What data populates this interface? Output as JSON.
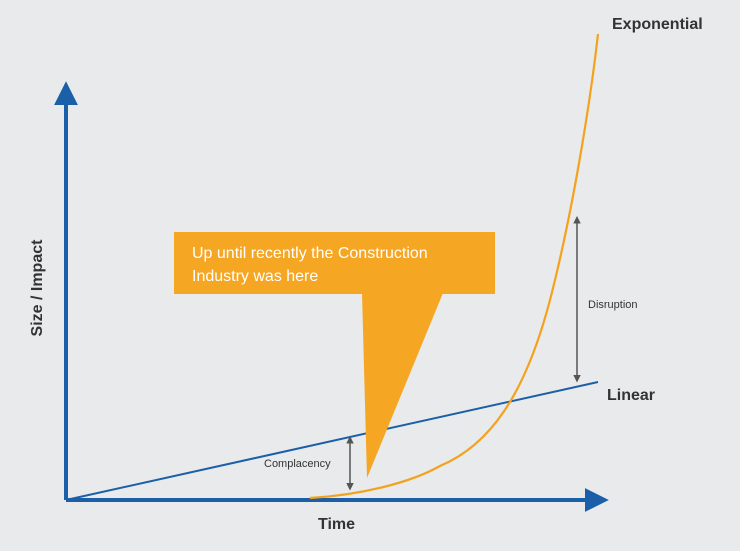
{
  "diagram": {
    "axes": {
      "x_label": "Time",
      "y_label": "Size / Impact"
    },
    "curves": {
      "exponential_label": "Exponential",
      "linear_label": "Linear"
    },
    "annotations": {
      "disruption_label": "Disruption",
      "complacency_label": "Complacency"
    },
    "callout": {
      "text": "Up until recently the Construction Industry was here"
    },
    "colors": {
      "background": "#e9eaec",
      "axis_blue": "#1a5fa8",
      "exponential_orange": "#f4a21d",
      "callout_orange": "#f5a623",
      "arrow_gray": "#555555"
    }
  }
}
